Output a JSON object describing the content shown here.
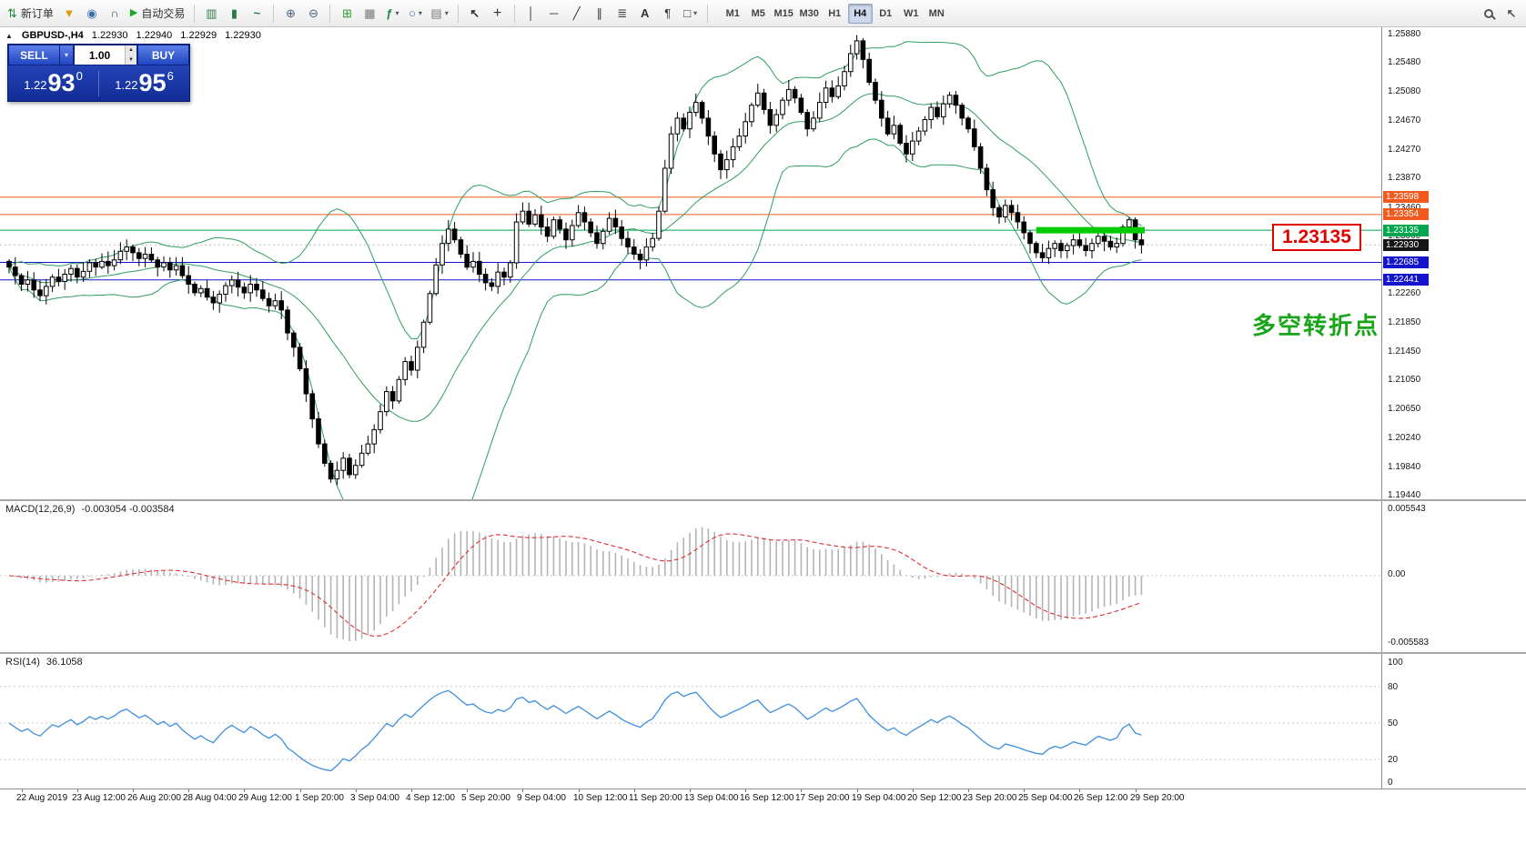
{
  "toolbar": {
    "new_order": "新订单",
    "auto_trading": "自动交易",
    "timeframes": [
      "M1",
      "M5",
      "M15",
      "M30",
      "H1",
      "H4",
      "D1",
      "W1",
      "MN"
    ],
    "active_timeframe": "H4",
    "icons": {
      "new_order": "⇅",
      "funnel": "▼",
      "profile": "◉",
      "support": "∩",
      "autotrade_play": "▶",
      "bars": "▥",
      "candles": "▮",
      "line_chart": "~",
      "zoom_in": "⊕",
      "zoom_out": "⊖",
      "grid": "⊞",
      "tile_windows": "▦",
      "indicators": "ƒ",
      "periods": "○",
      "template": "▤",
      "dropdown": "▾",
      "cursor": "↖",
      "crosshair": "+",
      "vline": "│",
      "hline": "─",
      "trendline": "╱",
      "channel": "∥",
      "fibonacci": "≣",
      "text": "A",
      "label": "¶",
      "shapes": "□"
    }
  },
  "chart": {
    "symbol": "GBPUSD-,H4",
    "ohlc": [
      "1.22930",
      "1.22940",
      "1.22929",
      "1.22930"
    ]
  },
  "trade_panel": {
    "sell_label": "SELL",
    "buy_label": "BUY",
    "volume": "1.00",
    "sell_price": {
      "base": "1.22",
      "big": "93",
      "sup": "0"
    },
    "buy_price": {
      "base": "1.22",
      "big": "95",
      "sup": "6"
    }
  },
  "main": {
    "annotation": "多空转折点",
    "big_label": "1.23135",
    "current": {
      "price": 1.2293,
      "label": "1.22930",
      "color": "#151515"
    },
    "levels": [
      {
        "price": 1.23598,
        "label": "1.23598",
        "color": "#f05a1e"
      },
      {
        "price": 1.23354,
        "label": "1.23354",
        "color": "#f05a1e"
      },
      {
        "price": 1.23135,
        "label": "1.23135",
        "color": "#00a650"
      },
      {
        "price": 1.22685,
        "label": "1.22685",
        "color": "#1414cc"
      },
      {
        "price": 1.22441,
        "label": "1.22441",
        "color": "#1414cc"
      }
    ],
    "thick_segment": {
      "price": 1.23135,
      "from_index": 166,
      "color": "#00cc00"
    },
    "y_labels": [
      "1.25880",
      "1.25480",
      "1.25080",
      "1.24670",
      "1.24270",
      "1.23870",
      "1.23460",
      "1.23060",
      "1.22660",
      "1.22260",
      "1.21850",
      "1.21450",
      "1.21050",
      "1.20650",
      "1.20240",
      "1.19840",
      "1.19440"
    ]
  },
  "macd": {
    "title": "MACD(12,26,9)",
    "values": "-0.003054 -0.003584",
    "scale": [
      "0.005543",
      "0.00",
      "-0.005583"
    ]
  },
  "rsi": {
    "title": "RSI(14)",
    "value": "36.1058",
    "scale": [
      "100",
      "80",
      "50",
      "20",
      "0"
    ],
    "levels": [
      80,
      50,
      20
    ]
  },
  "time_axis": {
    "labels": [
      "22 Aug 2019",
      "23 Aug 12:00",
      "26 Aug 20:00",
      "28 Aug 04:00",
      "29 Aug 12:00",
      "1 Sep 20:00",
      "3 Sep 04:00",
      "4 Sep 12:00",
      "5 Sep 20:00",
      "9 Sep 04:00",
      "10 Sep 12:00",
      "11 Sep 20:00",
      "13 Sep 04:00",
      "16 Sep 12:00",
      "17 Sep 20:00",
      "19 Sep 04:00",
      "20 Sep 12:00",
      "23 Sep 20:00",
      "25 Sep 04:00",
      "26 Sep 12:00",
      "29 Sep 20:00"
    ],
    "indices": [
      2,
      11,
      20,
      29,
      38,
      47,
      56,
      65,
      74,
      83,
      92,
      101,
      110,
      119,
      128,
      137,
      146,
      155,
      164,
      173,
      182
    ]
  },
  "chart_data": {
    "type": "candlestick",
    "symbol": "GBPUSD",
    "timeframe": "H4",
    "title": "GBPUSD-,H4",
    "price_axis": {
      "top": 1.2588,
      "bottom": 1.1944
    },
    "first_open": 1.227,
    "closes": [
      1.2262,
      1.225,
      1.2238,
      1.2244,
      1.223,
      1.2222,
      1.2235,
      1.2248,
      1.2242,
      1.2252,
      1.226,
      1.2248,
      1.2256,
      1.2268,
      1.2262,
      1.227,
      1.2264,
      1.2272,
      1.2284,
      1.229,
      1.2282,
      1.2274,
      1.228,
      1.2272,
      1.2262,
      1.2268,
      1.2258,
      1.2264,
      1.225,
      1.2238,
      1.2226,
      1.2232,
      1.222,
      1.2212,
      1.2224,
      1.2236,
      1.2244,
      1.2234,
      1.2226,
      1.2238,
      1.223,
      1.2218,
      1.2208,
      1.2215,
      1.2202,
      1.217,
      1.215,
      1.212,
      1.2085,
      1.205,
      1.2015,
      1.1988,
      1.1966,
      1.1978,
      1.1995,
      1.1972,
      1.1985,
      1.2002,
      1.2015,
      1.2035,
      1.206,
      1.2088,
      1.2075,
      1.2105,
      1.213,
      1.2118,
      1.215,
      1.2185,
      1.2225,
      1.2265,
      1.2295,
      1.2315,
      1.23,
      1.228,
      1.2262,
      1.227,
      1.2252,
      1.224,
      1.2235,
      1.2255,
      1.2248,
      1.2268,
      1.2325,
      1.234,
      1.2322,
      1.2335,
      1.2318,
      1.2305,
      1.2328,
      1.2315,
      1.23,
      1.232,
      1.2338,
      1.2325,
      1.231,
      1.2295,
      1.2312,
      1.233,
      1.2318,
      1.2302,
      1.229,
      1.228,
      1.2272,
      1.229,
      1.2302,
      1.234,
      1.24,
      1.2448,
      1.247,
      1.2455,
      1.2478,
      1.2492,
      1.247,
      1.2445,
      1.242,
      1.2398,
      1.2412,
      1.243,
      1.2445,
      1.2465,
      1.2488,
      1.2505,
      1.2482,
      1.246,
      1.2475,
      1.2495,
      1.251,
      1.2498,
      1.2478,
      1.2455,
      1.247,
      1.2492,
      1.2512,
      1.25,
      1.2515,
      1.2535,
      1.256,
      1.2578,
      1.2552,
      1.252,
      1.2495,
      1.247,
      1.2448,
      1.246,
      1.2435,
      1.242,
      1.2438,
      1.2452,
      1.2468,
      1.2485,
      1.2472,
      1.249,
      1.2502,
      1.2488,
      1.247,
      1.2455,
      1.243,
      1.24,
      1.237,
      1.2345,
      1.2332,
      1.2348,
      1.2338,
      1.2325,
      1.231,
      1.2295,
      1.2282,
      1.2275,
      1.2288,
      1.2295,
      1.2285,
      1.2292,
      1.23,
      1.2292,
      1.2285,
      1.2295,
      1.2305,
      1.2298,
      1.229,
      1.2295,
      1.2318,
      1.2328,
      1.23,
      1.2293
    ],
    "current": 1.2293,
    "levels": [
      1.23598,
      1.23354,
      1.23135,
      1.22685,
      1.22441
    ],
    "indicators": [
      {
        "name": "Bollinger Bands",
        "period": 20,
        "deviation": 2,
        "color": "#2f9e5f"
      },
      {
        "name": "MACD",
        "fast": 12,
        "slow": 26,
        "signal": 9,
        "current": [
          -0.003054,
          -0.003584
        ],
        "scale_max": 0.005543,
        "scale_min": -0.005583
      },
      {
        "name": "RSI",
        "period": 14,
        "current": 36.1058,
        "range": [
          0,
          100
        ]
      }
    ]
  }
}
